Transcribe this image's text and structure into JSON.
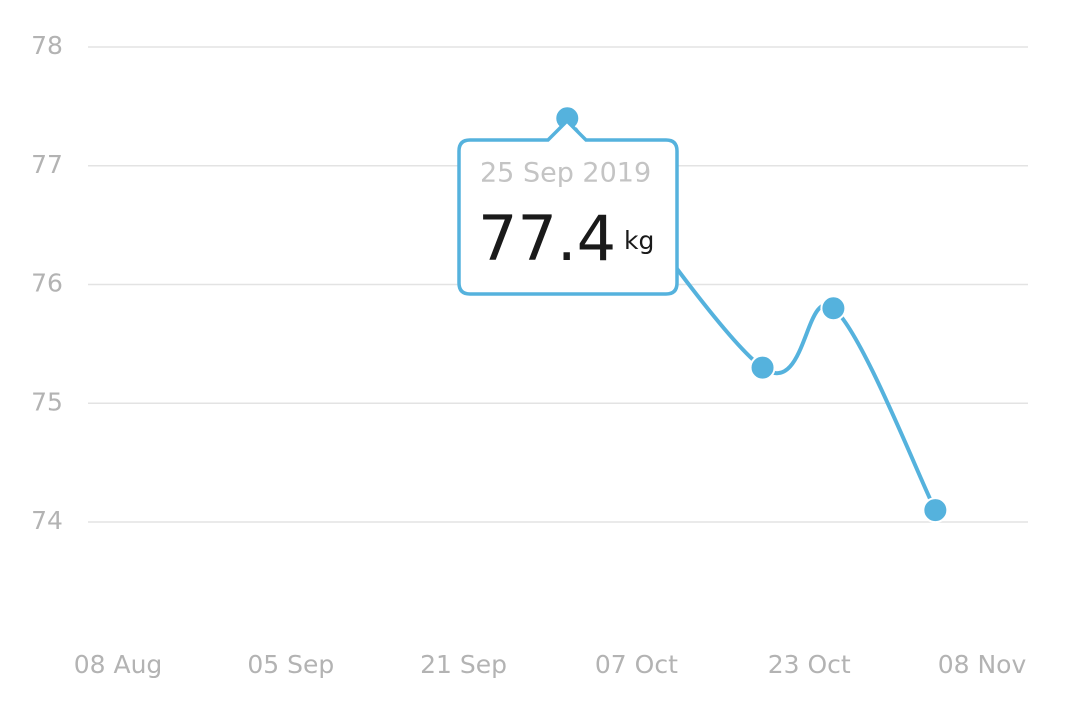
{
  "chart_data": {
    "type": "line",
    "x": [
      2.6,
      3.73,
      4.14,
      4.73
    ],
    "values": [
      77.4,
      75.3,
      75.8,
      74.1
    ],
    "color": "#55b2dd",
    "xlim": [
      0,
      5
    ],
    "xticks": [
      {
        "value": 0,
        "label": "08 Aug"
      },
      {
        "value": 1,
        "label": "05 Sep"
      },
      {
        "value": 2,
        "label": "21 Sep"
      },
      {
        "value": 3,
        "label": "07 Oct"
      },
      {
        "value": 4,
        "label": "23 Oct"
      },
      {
        "value": 5,
        "label": "08 Nov"
      }
    ],
    "ylim": [
      74,
      78
    ],
    "yticks": [
      74,
      75,
      76,
      77,
      78
    ],
    "grid": true,
    "tooltip": {
      "date": "25 Sep 2019",
      "unit": "kg"
    }
  }
}
